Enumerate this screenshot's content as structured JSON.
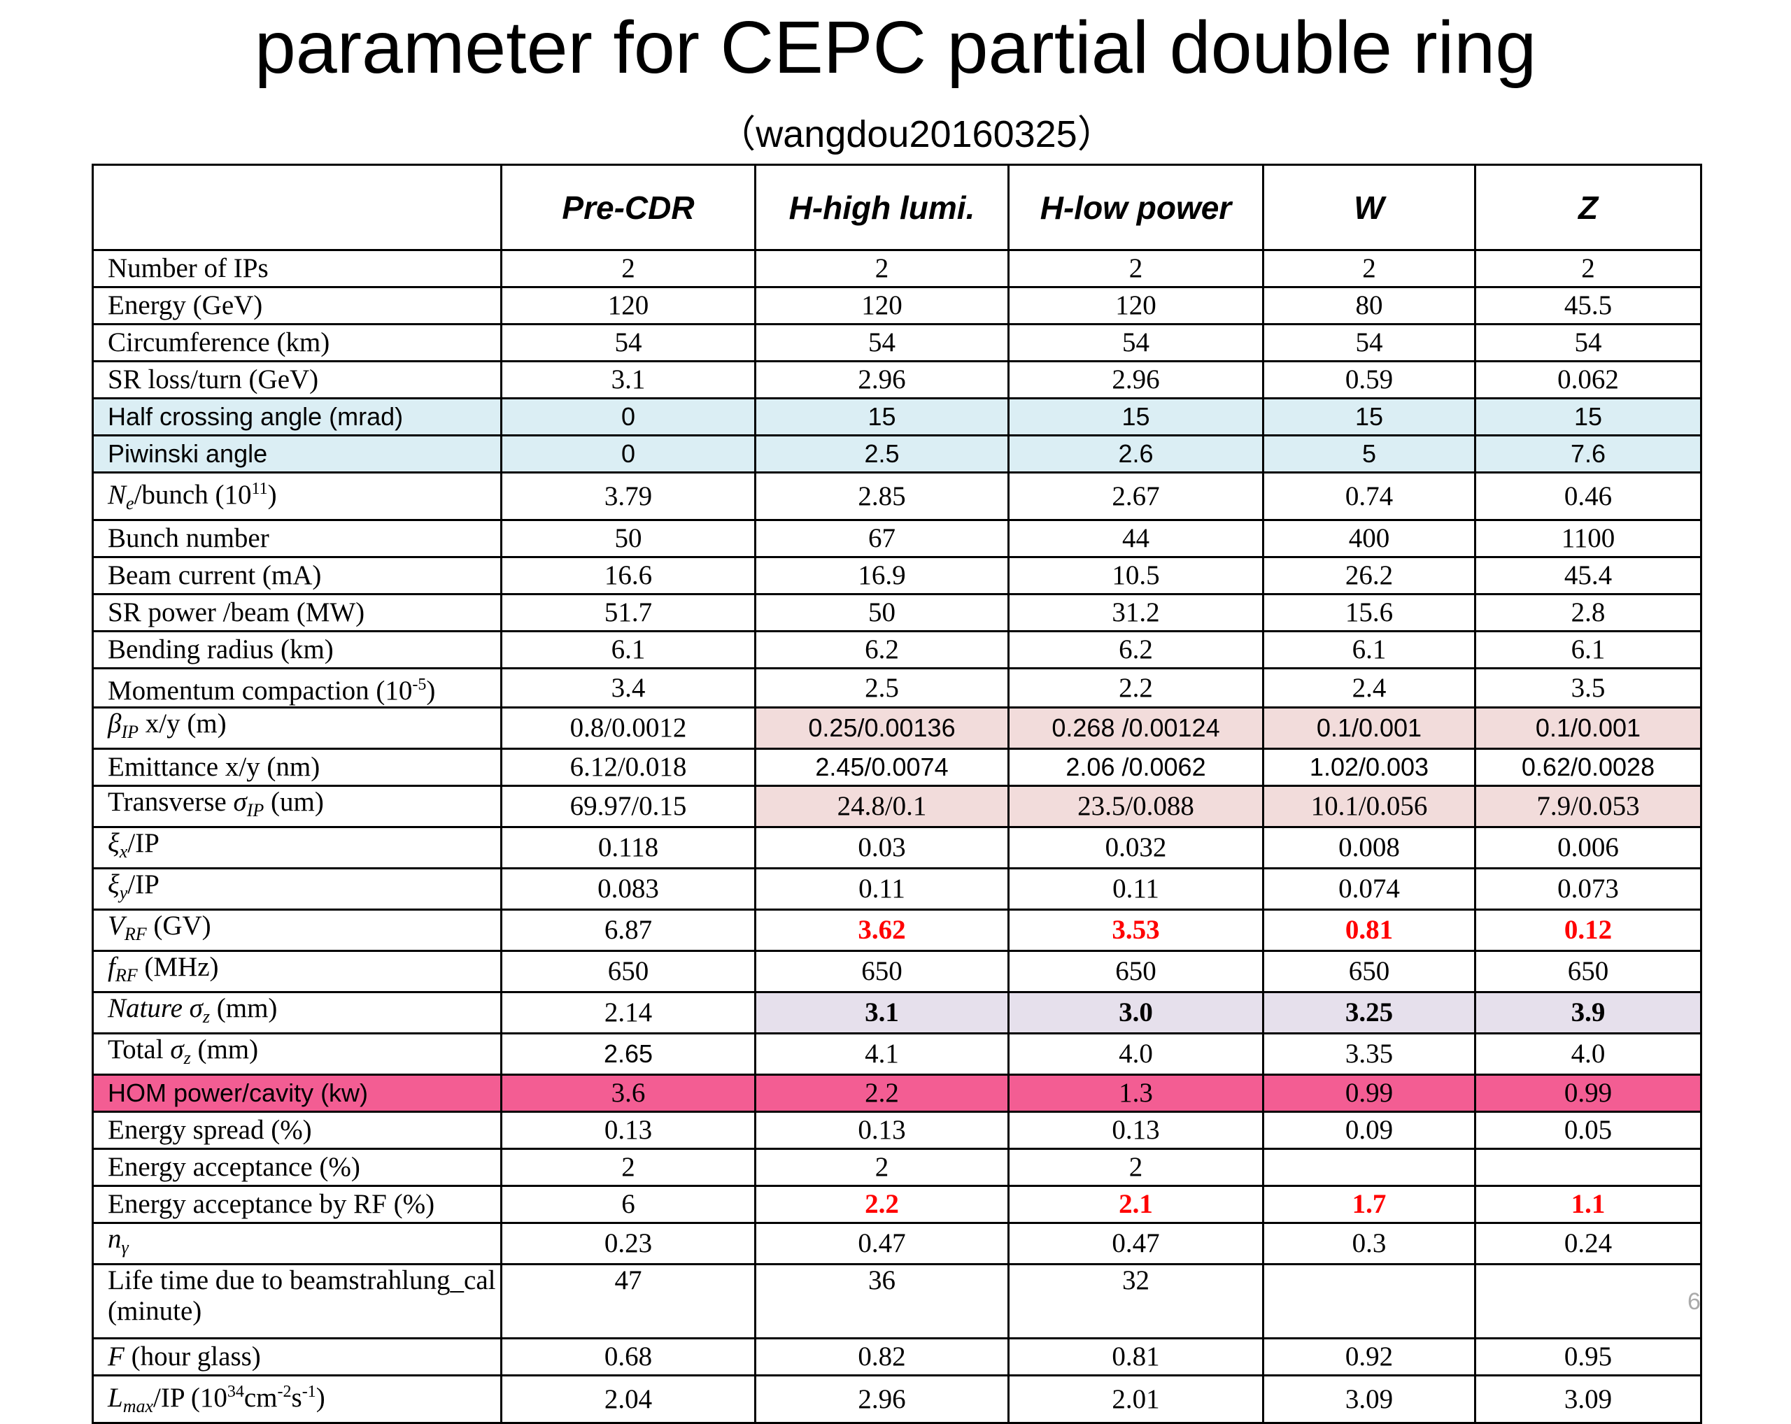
{
  "title": "parameter for CEPC partial double ring",
  "subtitle": "（wangdou20160325）",
  "page_number": "6",
  "table": {
    "header": [
      "Pre-CDR",
      "H-high lumi.",
      "H-low power",
      "W",
      "Z"
    ],
    "rows": [
      {
        "label": "Number of IPs",
        "values": [
          2,
          2,
          2,
          2,
          2
        ]
      },
      {
        "label": "Energy (GeV)",
        "values": [
          120,
          120,
          120,
          80,
          45.5
        ]
      },
      {
        "label": "Circumference (km)",
        "values": [
          54,
          54,
          54,
          54,
          54
        ]
      },
      {
        "label": "SR loss/turn (GeV)",
        "values": [
          3.1,
          2.96,
          2.96,
          0.59,
          0.062
        ]
      },
      {
        "label": "Half crossing angle (mrad)",
        "values": [
          0,
          15,
          15,
          15,
          15
        ],
        "fill": "#dbeef4",
        "sans": true
      },
      {
        "label": "Piwinski angle",
        "values": [
          0,
          2.5,
          2.6,
          5,
          7.6
        ],
        "fill": "#dbeef4",
        "sans": true
      },
      {
        "label": [
          {
            "text": "N",
            "style": "italic"
          },
          {
            "text": "e",
            "style": "italic-sub"
          },
          "/bunch (10",
          {
            "text": "11",
            "style": "sup"
          },
          ")"
        ],
        "values": [
          3.79,
          2.85,
          2.67,
          0.74,
          0.46
        ]
      },
      {
        "label": "Bunch number",
        "values": [
          50,
          67,
          44,
          400,
          1100
        ]
      },
      {
        "label": "Beam current (mA)",
        "values": [
          16.6,
          16.9,
          10.5,
          26.2,
          45.4
        ]
      },
      {
        "label": "SR power /beam (MW)",
        "values": [
          51.7,
          50,
          31.2,
          15.6,
          2.8
        ]
      },
      {
        "label": "Bending radius (km)",
        "values": [
          6.1,
          6.2,
          6.2,
          6.1,
          6.1
        ]
      },
      {
        "label": [
          "Momentum compaction (10",
          {
            "text": "-5",
            "style": "sup"
          },
          ")"
        ],
        "values": [
          3.4,
          2.5,
          2.2,
          2.4,
          3.5
        ]
      },
      {
        "label": [
          {
            "text": "β",
            "style": "italic"
          },
          {
            "text": "IP",
            "style": "italic-sub"
          },
          " x/y (m)"
        ],
        "values": [
          "0.8/0.0012",
          "0.25/0.00136",
          "0.268 /0.00124",
          "0.1/0.001",
          "0.1/0.001"
        ],
        "cell_fill": "#f2dcdb",
        "filled": [
          1,
          2,
          3,
          4
        ],
        "sans_values": [
          1,
          2,
          3,
          4
        ]
      },
      {
        "label": "Emittance  x/y (nm)",
        "values": [
          "6.12/0.018",
          "2.45/0.0074",
          "2.06 /0.0062",
          "1.02/0.003",
          "0.62/0.0028"
        ],
        "sans_values": [
          1,
          2,
          3,
          4
        ]
      },
      {
        "label": [
          "Transverse  ",
          {
            "text": "σ",
            "style": "italic"
          },
          {
            "text": "IP",
            "style": "italic-sub"
          },
          " (um)"
        ],
        "values": [
          "69.97/0.15",
          "24.8/0.1",
          "23.5/0.088",
          "10.1/0.056",
          "7.9/0.053"
        ],
        "cell_fill": "#f2dcdb",
        "filled": [
          1,
          2,
          3,
          4
        ]
      },
      {
        "label": [
          {
            "text": "ξ",
            "style": "italic"
          },
          {
            "text": "x",
            "style": "italic-sub"
          },
          "/IP"
        ],
        "values": [
          0.118,
          0.03,
          0.032,
          0.008,
          0.006
        ]
      },
      {
        "label": [
          {
            "text": "ξ",
            "style": "italic"
          },
          {
            "text": "y",
            "style": "italic-sub"
          },
          "/IP"
        ],
        "values": [
          0.083,
          0.11,
          0.11,
          0.074,
          0.073
        ]
      },
      {
        "label": [
          {
            "text": "V",
            "style": "italic"
          },
          {
            "text": "RF",
            "style": "italic-sub"
          },
          " (GV)"
        ],
        "values": [
          6.87,
          3.62,
          3.53,
          0.81,
          0.12
        ],
        "red": [
          1,
          2,
          3,
          4
        ]
      },
      {
        "label": [
          {
            "text": "f",
            "style": "italic"
          },
          {
            "text": "RF",
            "style": "italic-sub"
          },
          " (MHz)"
        ],
        "values": [
          650,
          650,
          650,
          650,
          650
        ]
      },
      {
        "label": [
          {
            "text": "Nature ",
            "style": "italic"
          },
          {
            "text": "σ",
            "style": "italic"
          },
          {
            "text": "z",
            "style": "italic-sub"
          },
          " (mm)"
        ],
        "values": [
          2.14,
          "3.1",
          "3.0",
          3.25,
          3.9
        ],
        "bold": [
          1,
          2,
          3,
          4
        ],
        "cell_fill": "#e6e0ec",
        "filled": [
          1,
          2,
          3,
          4
        ]
      },
      {
        "label": [
          "Total  ",
          {
            "text": "σ",
            "style": "italic"
          },
          {
            "text": "z",
            "style": "italic-sub"
          },
          " (mm)"
        ],
        "values": [
          2.65,
          4.1,
          "4.0",
          3.35,
          "4.0"
        ],
        "sans_values": [
          0
        ]
      },
      {
        "label": "HOM power/cavity (kw)",
        "values": [
          3.6,
          2.2,
          1.3,
          0.99,
          0.99
        ],
        "fill": "#f35d93",
        "sans_label": true
      },
      {
        "label": "Energy spread (%)",
        "values": [
          0.13,
          0.13,
          0.13,
          0.09,
          0.05
        ]
      },
      {
        "label": "Energy acceptance (%)",
        "values": [
          2,
          2,
          2,
          null,
          null
        ]
      },
      {
        "label": "Energy acceptance  by RF (%)",
        "values": [
          6,
          2.2,
          2.1,
          1.7,
          1.1
        ],
        "red": [
          1,
          2,
          3,
          4
        ]
      },
      {
        "label": [
          {
            "text": "n",
            "style": "italic"
          },
          {
            "text": "γ",
            "style": "italic-sub"
          }
        ],
        "values": [
          0.23,
          0.47,
          0.47,
          0.3,
          0.24
        ]
      },
      {
        "label": "Life time due to beamstrahlung_cal (minute)",
        "values": [
          47,
          36,
          32,
          null,
          null
        ],
        "tall": true
      },
      {
        "label": [
          {
            "text": "F",
            "style": "italic"
          },
          " (hour glass)"
        ],
        "values": [
          0.68,
          0.82,
          0.81,
          0.92,
          0.95
        ]
      },
      {
        "label": [
          {
            "text": "L",
            "style": "italic"
          },
          {
            "text": "max",
            "style": "italic-sub"
          },
          "/IP (10",
          {
            "text": "34",
            "style": "sup"
          },
          "cm",
          {
            "text": "-2",
            "style": "sup"
          },
          "s",
          {
            "text": "-1",
            "style": "sup"
          },
          ")"
        ],
        "values": [
          2.04,
          2.96,
          2.01,
          3.09,
          3.09
        ]
      }
    ]
  }
}
